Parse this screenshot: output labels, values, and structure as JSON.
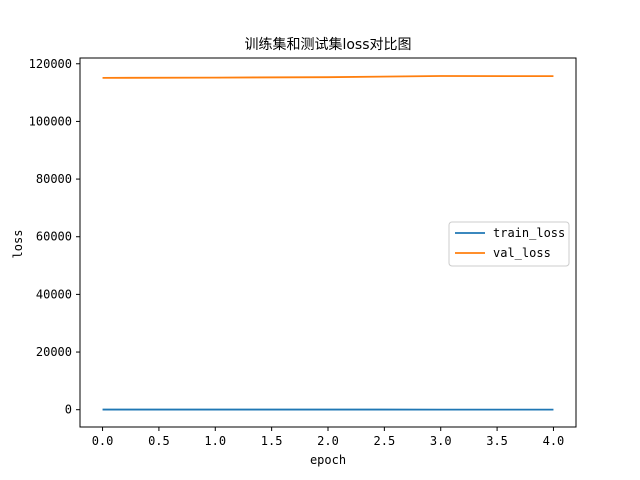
{
  "chart_data": {
    "type": "line",
    "title": "训练集和测试集loss对比图",
    "xlabel": "epoch",
    "ylabel": "loss",
    "x": [
      0,
      1,
      2,
      3,
      4
    ],
    "xlim": [
      -0.2,
      4.2
    ],
    "ylim": [
      -6000,
      122000
    ],
    "xticks": [
      0.0,
      0.5,
      1.0,
      1.5,
      2.0,
      2.5,
      3.0,
      3.5,
      4.0
    ],
    "xtick_labels": [
      "0.0",
      "0.5",
      "1.0",
      "1.5",
      "2.0",
      "2.5",
      "3.0",
      "3.5",
      "4.0"
    ],
    "yticks": [
      0,
      20000,
      40000,
      60000,
      80000,
      100000,
      120000
    ],
    "ytick_labels": [
      "0",
      "20000",
      "40000",
      "60000",
      "80000",
      "100000",
      "120000"
    ],
    "grid": false,
    "legend_position": "center-right",
    "series": [
      {
        "name": "train_loss",
        "color": "#1f77b4",
        "values": [
          50,
          45,
          42,
          40,
          38
        ]
      },
      {
        "name": "val_loss",
        "color": "#ff7f0e",
        "values": [
          115100,
          115200,
          115350,
          115750,
          115700
        ]
      }
    ]
  }
}
